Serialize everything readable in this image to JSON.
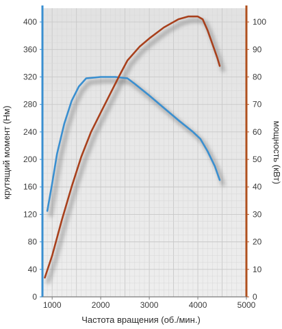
{
  "chart_data": {
    "type": "line",
    "xlabel": "Частота вращения (об./мин.)",
    "ylabel_left": "крутящий момент (Нм)",
    "ylabel_right": "мощность (кВт)",
    "xlim": [
      800,
      5000
    ],
    "ylim_left": [
      0,
      420
    ],
    "ylim_right": [
      0,
      105
    ],
    "x_ticks": [
      1000,
      2000,
      3000,
      4000,
      5000
    ],
    "y_ticks_left": [
      0,
      40,
      80,
      120,
      160,
      200,
      240,
      280,
      320,
      360,
      400
    ],
    "y_ticks_right": [
      0,
      10,
      20,
      30,
      40,
      50,
      60,
      70,
      80,
      90,
      100
    ],
    "grid": true,
    "colors": {
      "torque": "#3a8fd0",
      "power": "#a8401c",
      "left_axis": "#3a8fd0",
      "right_axis": "#b0501e",
      "grid": "#d7d7d7",
      "background": "#e3e3e3"
    },
    "series": [
      {
        "key": "torque",
        "axis": "left",
        "x": [
          900,
          1000,
          1100,
          1250,
          1400,
          1550,
          1700,
          2000,
          2300,
          2550,
          2700,
          3000,
          3300,
          3600,
          3900,
          4050,
          4200,
          4350,
          4450
        ],
        "y": [
          125,
          165,
          208,
          252,
          285,
          306,
          318,
          320,
          320,
          318,
          310,
          293,
          275,
          257,
          240,
          230,
          212,
          190,
          170
        ]
      },
      {
        "key": "power",
        "axis": "right",
        "x": [
          850,
          1000,
          1200,
          1400,
          1600,
          1800,
          2000,
          2200,
          2400,
          2550,
          2800,
          3000,
          3300,
          3600,
          3800,
          4000,
          4100,
          4200,
          4300,
          4400,
          4450
        ],
        "y": [
          7,
          15,
          28,
          40,
          51,
          60,
          67,
          74,
          81,
          86,
          91,
          94,
          98,
          101,
          102,
          102,
          101,
          97,
          92,
          87,
          84
        ]
      }
    ]
  }
}
